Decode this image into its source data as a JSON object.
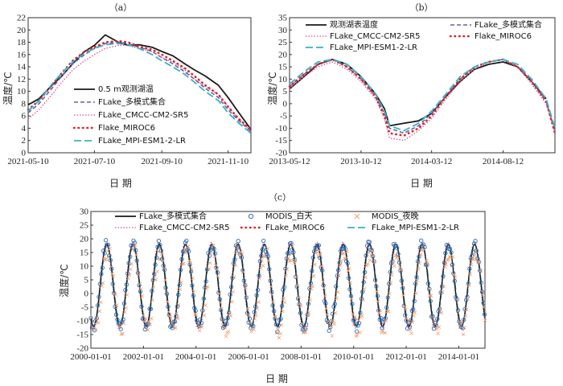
{
  "colors": {
    "obs": "#1a1a1a",
    "ensemble": "#6a5fb0",
    "cmcc": "#e0508a",
    "miroc": "#d62828",
    "mpi": "#35b3c2",
    "modis_day": "#2f6db5",
    "modis_night": "#f0a070"
  },
  "chart_data": [
    {
      "id": "a",
      "panel_label": "（a）",
      "type": "line",
      "xlabel": "日 期",
      "ylabel": "温度/℃",
      "ylim": [
        0,
        22
      ],
      "yticks": [
        0,
        2,
        4,
        6,
        8,
        10,
        12,
        14,
        16,
        18,
        20,
        22
      ],
      "xlim": [
        "2021-05-10",
        "2021-12-01"
      ],
      "xticks": [
        "2021-05-10",
        "2021-07-10",
        "2021-09-10",
        "2021-11-10"
      ],
      "legend": [
        "0.5 m观测湖温",
        "FLake_多模式集合",
        "FLake_CMCC-CM2-SR5",
        "Flake_MIROC6",
        "FLake_MPI-ESM1-2-LR"
      ],
      "series": [
        {
          "name": "0.5 m观测湖温",
          "color_key": "obs",
          "style": "solid",
          "x": [
            "2021-05-10",
            "2021-05-20",
            "2021-06-01",
            "2021-06-10",
            "2021-06-20",
            "2021-07-01",
            "2021-07-10",
            "2021-07-20",
            "2021-08-01",
            "2021-08-10",
            "2021-08-20",
            "2021-09-01",
            "2021-09-10",
            "2021-09-20",
            "2021-10-01",
            "2021-10-10",
            "2021-10-20",
            "2021-11-01",
            "2021-11-10",
            "2021-11-20",
            "2021-12-01"
          ],
          "values": [
            7.8,
            8.8,
            11.0,
            12.5,
            14.5,
            16.5,
            17.5,
            19.2,
            18.0,
            17.5,
            17.6,
            17.2,
            16.5,
            15.8,
            14.5,
            13.5,
            12.5,
            11.0,
            9.0,
            6.5,
            3.8
          ]
        },
        {
          "name": "FLake_多模式集合",
          "color_key": "ensemble",
          "style": "dash",
          "x": [
            "2021-05-10",
            "2021-05-20",
            "2021-06-01",
            "2021-06-10",
            "2021-06-20",
            "2021-07-01",
            "2021-07-10",
            "2021-07-20",
            "2021-08-01",
            "2021-08-10",
            "2021-08-20",
            "2021-09-01",
            "2021-09-10",
            "2021-09-20",
            "2021-10-01",
            "2021-10-10",
            "2021-10-20",
            "2021-11-01",
            "2021-11-10",
            "2021-11-20",
            "2021-12-01"
          ],
          "values": [
            6.5,
            8.0,
            10.5,
            12.5,
            14.5,
            16.0,
            17.0,
            17.8,
            18.0,
            17.8,
            17.2,
            16.5,
            15.5,
            14.5,
            13.2,
            12.0,
            10.5,
            9.0,
            7.0,
            5.2,
            3.5
          ]
        },
        {
          "name": "FLake_CMCC-CM2-SR5",
          "color_key": "cmcc",
          "style": "dot",
          "x": [
            "2021-05-10",
            "2021-05-20",
            "2021-06-01",
            "2021-06-10",
            "2021-06-20",
            "2021-07-01",
            "2021-07-10",
            "2021-07-20",
            "2021-08-01",
            "2021-08-10",
            "2021-08-20",
            "2021-09-01",
            "2021-09-10",
            "2021-09-20",
            "2021-10-01",
            "2021-10-10",
            "2021-10-20",
            "2021-11-01",
            "2021-11-10",
            "2021-11-20",
            "2021-12-01"
          ],
          "values": [
            5.5,
            7.0,
            9.5,
            11.5,
            13.5,
            15.0,
            16.0,
            17.0,
            17.5,
            17.5,
            17.0,
            16.5,
            15.5,
            14.8,
            13.5,
            12.0,
            10.8,
            9.5,
            7.5,
            5.5,
            3.5
          ]
        },
        {
          "name": "Flake_MIROC6",
          "color_key": "miroc",
          "style": "bigdot",
          "x": [
            "2021-05-10",
            "2021-05-20",
            "2021-06-01",
            "2021-06-10",
            "2021-06-20",
            "2021-07-01",
            "2021-07-10",
            "2021-07-20",
            "2021-08-01",
            "2021-08-10",
            "2021-08-20",
            "2021-09-01",
            "2021-09-10",
            "2021-09-20",
            "2021-10-01",
            "2021-10-10",
            "2021-10-20",
            "2021-11-01",
            "2021-11-10",
            "2021-11-20",
            "2021-12-01"
          ],
          "values": [
            7.0,
            8.5,
            11.0,
            13.0,
            15.0,
            16.5,
            17.2,
            18.0,
            18.2,
            18.0,
            17.3,
            16.8,
            16.0,
            15.0,
            13.8,
            12.5,
            11.0,
            9.5,
            7.5,
            5.5,
            3.8
          ]
        },
        {
          "name": "FLake_MPI-ESM1-2-LR",
          "color_key": "mpi",
          "style": "longdash",
          "x": [
            "2021-05-10",
            "2021-05-20",
            "2021-06-01",
            "2021-06-10",
            "2021-06-20",
            "2021-07-01",
            "2021-07-10",
            "2021-07-20",
            "2021-08-01",
            "2021-08-10",
            "2021-08-20",
            "2021-09-01",
            "2021-09-10",
            "2021-09-20",
            "2021-10-01",
            "2021-10-10",
            "2021-10-20",
            "2021-11-01",
            "2021-11-10",
            "2021-11-20",
            "2021-12-01"
          ],
          "values": [
            6.8,
            8.5,
            11.2,
            13.0,
            14.8,
            16.2,
            17.0,
            17.6,
            17.8,
            17.6,
            17.0,
            16.0,
            15.0,
            14.0,
            12.8,
            11.5,
            10.0,
            8.5,
            6.5,
            4.8,
            3.2
          ]
        }
      ]
    },
    {
      "id": "b",
      "panel_label": "（b）",
      "type": "line",
      "xlabel": "日 期",
      "ylabel": "温度/℃",
      "ylim": [
        -20,
        35
      ],
      "yticks": [
        -20,
        -15,
        -10,
        -5,
        0,
        5,
        10,
        15,
        20,
        25,
        30,
        35
      ],
      "xlim": [
        "2013-05-12",
        "2014-12-01"
      ],
      "xticks": [
        "2013-05-12",
        "2013-10-12",
        "2014-03-12",
        "2014-08-12"
      ],
      "legend": [
        "观测湖表温度",
        "FLake_多模式集合",
        "FLake_CMCC-CM2-SR5",
        "Flake_MIROC6",
        "FLake_MPI-ESM1-2-LR"
      ],
      "series": [
        {
          "name": "观测湖表温度",
          "color_key": "obs",
          "style": "solid",
          "x": [
            "2013-05-12",
            "2013-06-12",
            "2013-07-12",
            "2013-08-12",
            "2013-09-12",
            "2013-10-12",
            "2013-11-12",
            "2013-12-01",
            "2013-12-12",
            "2014-01-12",
            "2014-02-12",
            "2014-03-12",
            "2014-04-12",
            "2014-05-12",
            "2014-06-12",
            "2014-07-12",
            "2014-08-12",
            "2014-09-12",
            "2014-10-12",
            "2014-11-12"
          ],
          "values": [
            6,
            11,
            16,
            18,
            16,
            11,
            4,
            -2,
            -9,
            -8,
            -7,
            -4,
            3,
            9,
            14,
            16,
            17,
            15,
            9,
            2
          ]
        },
        {
          "name": "FLake_多模式集合",
          "color_key": "ensemble",
          "style": "dash",
          "x": [
            "2013-05-12",
            "2013-06-12",
            "2013-07-12",
            "2013-08-12",
            "2013-09-12",
            "2013-10-12",
            "2013-11-12",
            "2013-12-01",
            "2013-12-12",
            "2014-01-12",
            "2014-02-12",
            "2014-03-12",
            "2014-04-12",
            "2014-05-12",
            "2014-06-12",
            "2014-07-12",
            "2014-08-12",
            "2014-09-12",
            "2014-10-12",
            "2014-11-12",
            "2014-12-01"
          ],
          "values": [
            7,
            12,
            16,
            18,
            15,
            10,
            3,
            -4,
            -10,
            -12,
            -9,
            -4,
            3,
            10,
            15,
            17,
            18,
            15,
            9,
            1,
            -11
          ]
        },
        {
          "name": "FLake_CMCC-CM2-SR5",
          "color_key": "cmcc",
          "style": "dot",
          "x": [
            "2013-05-12",
            "2013-06-12",
            "2013-07-12",
            "2013-08-12",
            "2013-09-12",
            "2013-10-12",
            "2013-11-12",
            "2013-12-01",
            "2013-12-12",
            "2014-01-12",
            "2014-02-12",
            "2014-03-12",
            "2014-04-12",
            "2014-05-12",
            "2014-06-12",
            "2014-07-12",
            "2014-08-12",
            "2014-09-12",
            "2014-10-12",
            "2014-11-12",
            "2014-12-01"
          ],
          "values": [
            6,
            11,
            15,
            17,
            14,
            9,
            2,
            -6,
            -14,
            -15,
            -11,
            -6,
            2,
            9,
            14,
            17,
            18,
            15,
            8,
            0,
            -12
          ]
        },
        {
          "name": "Flake_MIROC6",
          "color_key": "miroc",
          "style": "bigdot",
          "x": [
            "2013-05-12",
            "2013-06-12",
            "2013-07-12",
            "2013-08-12",
            "2013-09-12",
            "2013-10-12",
            "2013-11-12",
            "2013-12-01",
            "2013-12-12",
            "2014-01-12",
            "2014-02-12",
            "2014-03-12",
            "2014-04-12",
            "2014-05-12",
            "2014-06-12",
            "2014-07-12",
            "2014-08-12",
            "2014-09-12",
            "2014-10-12",
            "2014-11-12",
            "2014-12-01"
          ],
          "values": [
            7,
            12,
            16,
            18,
            15,
            10,
            3,
            -5,
            -12,
            -13,
            -10,
            -5,
            3,
            10,
            15,
            17,
            18,
            15,
            9,
            1,
            -12
          ]
        },
        {
          "name": "FLake_MPI-ESM1-2-LR",
          "color_key": "mpi",
          "style": "longdash",
          "x": [
            "2013-05-12",
            "2013-06-12",
            "2013-07-12",
            "2013-08-12",
            "2013-09-12",
            "2013-10-12",
            "2013-11-12",
            "2013-12-01",
            "2013-12-12",
            "2014-01-12",
            "2014-02-12",
            "2014-03-12",
            "2014-04-12",
            "2014-05-12",
            "2014-06-12",
            "2014-07-12",
            "2014-08-12",
            "2014-09-12",
            "2014-10-12",
            "2014-11-12",
            "2014-12-01"
          ],
          "values": [
            8,
            13,
            17,
            18,
            16,
            11,
            4,
            -3,
            -9,
            -11,
            -8,
            -3,
            4,
            11,
            15,
            17,
            18,
            16,
            10,
            2,
            -10
          ]
        }
      ]
    },
    {
      "id": "c",
      "panel_label": "（c）",
      "type": "line",
      "xlabel": "日 期",
      "ylabel": "温度/℃",
      "ylim": [
        -20,
        30
      ],
      "yticks": [
        -20,
        -15,
        -10,
        -5,
        0,
        5,
        10,
        15,
        20,
        25,
        30
      ],
      "xlim": [
        "2000-01-01",
        "2014-12-31"
      ],
      "xticks": [
        "2000-01-01",
        "2002-01-01",
        "2004-01-01",
        "2006-01-01",
        "2008-01-01",
        "2010-01-01",
        "2012-01-01",
        "2014-01-01"
      ],
      "legend": [
        "FLake_多模式集合",
        "MODIS_白天",
        "MODIS_夜晚",
        "FLake_CMCC-CM2-SR5",
        "FLake_MIROC6",
        "FLake_MPI-ESM1-2-LR"
      ],
      "seasonal_model": {
        "years": [
          2000,
          2014
        ],
        "summer_peak": 18,
        "winter_min": -12,
        "peak_day_of_year": 220
      },
      "series_styles": [
        {
          "name": "FLake_多模式集合",
          "color_key": "obs",
          "style": "solid"
        },
        {
          "name": "MODIS_白天",
          "color_key": "modis_day",
          "style": "circle"
        },
        {
          "name": "MODIS_夜晚",
          "color_key": "modis_night",
          "style": "cross"
        },
        {
          "name": "FLake_CMCC-CM2-SR5",
          "color_key": "cmcc",
          "style": "dot"
        },
        {
          "name": "FLake_MIROC6",
          "color_key": "miroc",
          "style": "bigdot"
        },
        {
          "name": "FLake_MPI-ESM1-2-LR",
          "color_key": "mpi",
          "style": "longdash"
        }
      ]
    }
  ]
}
